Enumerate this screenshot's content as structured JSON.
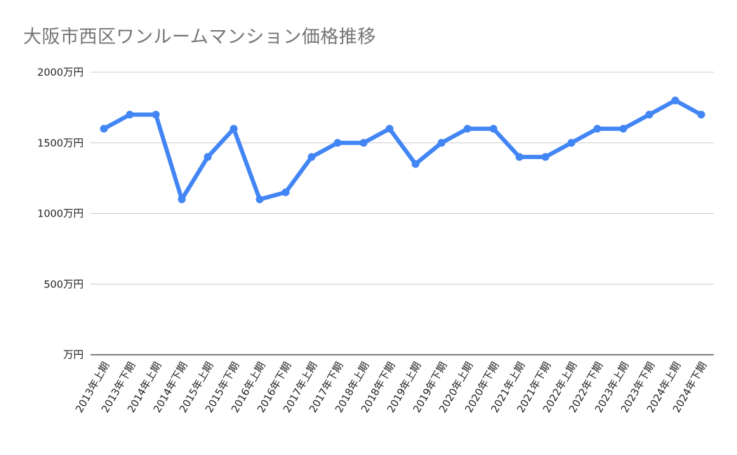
{
  "chart_data": {
    "type": "line",
    "title": "大阪市西区ワンルームマンション価格推移",
    "xlabel": "",
    "ylabel": "",
    "ylim": [
      0,
      2000
    ],
    "y_ticks": [
      {
        "value": 0,
        "label": "万円"
      },
      {
        "value": 500,
        "label": "500万円"
      },
      {
        "value": 1000,
        "label": "1000万円"
      },
      {
        "value": 1500,
        "label": "1500万円"
      },
      {
        "value": 2000,
        "label": "2000万円"
      }
    ],
    "grid": true,
    "legend": "none",
    "categories": [
      "2013年上期",
      "2013年下期",
      "2014年上期",
      "2014年下期",
      "2015年上期",
      "2015年下期",
      "2016年上期",
      "2016年下期",
      "2017年上期",
      "2017年下期",
      "2018年上期",
      "2018年下期",
      "2019年上期",
      "2019年下期",
      "2020年上期",
      "2020年下期",
      "2021年上期",
      "2021年下期",
      "2022年上期",
      "2022年下期",
      "2023年上期",
      "2023年下期",
      "2024年上期",
      "2024年下期"
    ],
    "series": [
      {
        "values": [
          1600,
          1700,
          1700,
          1100,
          1400,
          1600,
          1100,
          1150,
          1400,
          1500,
          1500,
          1600,
          1350,
          1500,
          1600,
          1600,
          1400,
          1400,
          1500,
          1600,
          1600,
          1700,
          1800,
          1700
        ],
        "color": "#4285f4"
      }
    ],
    "gridline_color": "#cccccc",
    "axis_color": "#333333"
  }
}
